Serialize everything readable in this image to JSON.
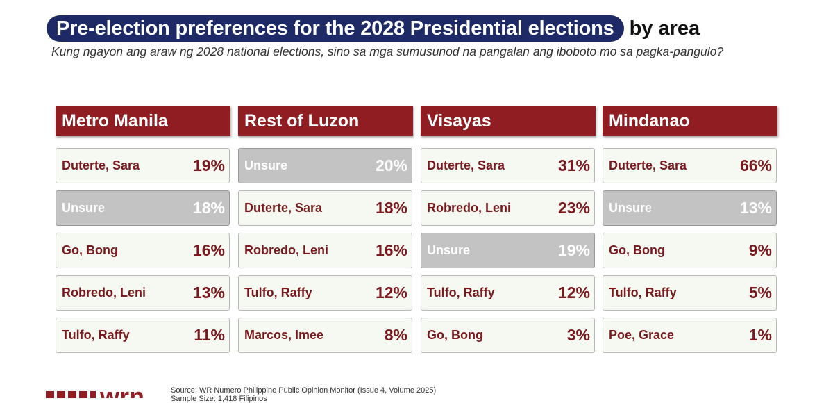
{
  "title": {
    "highlight": "Pre-election preferences for the 2028 Presidential elections",
    "suffix": "by area"
  },
  "subtitle": "Kung ngayon ang araw ng 2028 national elections, sino sa mga sumusunod na pangalan ang iboboto mo sa pagka-pangulo?",
  "colors": {
    "title_pill": "#1e2a66",
    "header": "#8f1d22",
    "card_bg": "#f5f9f1",
    "unsure_bg": "#c3c3c3",
    "text_dark_red": "#7a1a1f"
  },
  "chart_data": {
    "type": "table",
    "value_unit": "%",
    "areas": [
      {
        "name": "Metro Manila",
        "items": [
          {
            "label": "Duterte, Sara",
            "value": 19
          },
          {
            "label": "Unsure",
            "value": 18
          },
          {
            "label": "Go, Bong",
            "value": 16
          },
          {
            "label": "Robredo, Leni",
            "value": 13
          },
          {
            "label": "Tulfo, Raffy",
            "value": 11
          }
        ]
      },
      {
        "name": "Rest of Luzon",
        "items": [
          {
            "label": "Unsure",
            "value": 20
          },
          {
            "label": "Duterte, Sara",
            "value": 18
          },
          {
            "label": "Robredo, Leni",
            "value": 16
          },
          {
            "label": "Tulfo, Raffy",
            "value": 12
          },
          {
            "label": "Marcos, Imee",
            "value": 8
          }
        ]
      },
      {
        "name": "Visayas",
        "items": [
          {
            "label": "Duterte, Sara",
            "value": 31
          },
          {
            "label": "Robredo, Leni",
            "value": 23
          },
          {
            "label": "Unsure",
            "value": 19
          },
          {
            "label": "Tulfo, Raffy",
            "value": 12
          },
          {
            "label": "Go, Bong",
            "value": 3
          }
        ]
      },
      {
        "name": "Mindanao",
        "items": [
          {
            "label": "Duterte, Sara",
            "value": 66
          },
          {
            "label": "Unsure",
            "value": 13
          },
          {
            "label": "Go, Bong",
            "value": 9
          },
          {
            "label": "Tulfo, Raffy",
            "value": 5
          },
          {
            "label": "Poe, Grace",
            "value": 1
          }
        ]
      }
    ]
  },
  "footer": {
    "source": "Source: WR Numero Philippine Public Opinion Monitor (Issue 4, Volume 2025)",
    "sample": "Sample Size: 1,418 Filipinos"
  },
  "logo_text": "wrn"
}
